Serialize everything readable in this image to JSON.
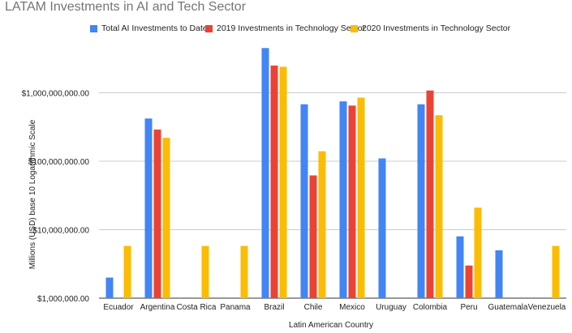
{
  "chart_data": {
    "type": "bar",
    "title": "LATAM Investments in AI and Tech Sector",
    "xlabel": "Latin American Country",
    "ylabel": "Millions (USD) base 10 Logarithmic Scale",
    "yscale": "log10",
    "ylim": [
      1000000,
      5000000000
    ],
    "yticks": [
      {
        "value": 1000000,
        "label": "$1,000,000.00"
      },
      {
        "value": 10000000,
        "label": "$10,000,000.00"
      },
      {
        "value": 100000000,
        "label": "$100,000,000.00"
      },
      {
        "value": 1000000000,
        "label": "$1,000,000,000.00"
      }
    ],
    "categories": [
      "Ecuador",
      "Argentina",
      "Costa Rica",
      "Panama",
      "Brazil",
      "Chile",
      "Mexico",
      "Uruguay",
      "Colombia",
      "Peru",
      "Guatemala",
      "Venezuela"
    ],
    "series": [
      {
        "name": "Total AI Investments to Date",
        "color": "#4285f4",
        "values": [
          2000000,
          420000000,
          null,
          null,
          4500000000,
          680000000,
          750000000,
          110000000,
          680000000,
          8000000,
          5000000,
          null
        ]
      },
      {
        "name": "2019 Investments in Technology Sector",
        "color": "#ea4335",
        "values": [
          null,
          290000000,
          null,
          null,
          2500000000,
          62000000,
          650000000,
          null,
          1080000000,
          3000000,
          null,
          null
        ]
      },
      {
        "name": "2020 Investments in Technology Sector",
        "color": "#fbbc04",
        "values": [
          5800000,
          220000000,
          5800000,
          5800000,
          2400000000,
          140000000,
          850000000,
          null,
          470000000,
          21000000,
          null,
          5800000
        ]
      }
    ],
    "legend_position": "top-center",
    "grid": "horizontal"
  }
}
